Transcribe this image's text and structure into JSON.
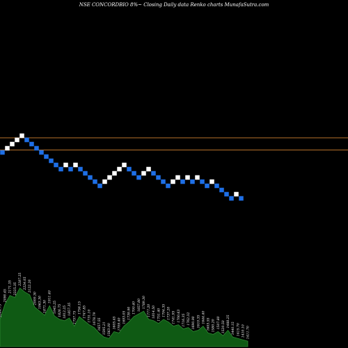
{
  "header": {
    "title": "NSE CONCORDBIO 8%~  Closing Daily data  Renko  charts MunafaSutra.com"
  },
  "colors": {
    "background": "#000000",
    "up_brick": "#ffffff",
    "down_brick": "#1e6fe6",
    "level_line": "#b8722a",
    "volume_fill": "#0f5a14",
    "volume_edge": "#2e8a32"
  },
  "chart_data": {
    "type": "renko",
    "brick_direction": [
      "down",
      "up",
      "up",
      "up",
      "up",
      "down",
      "down",
      "down",
      "down",
      "down",
      "down",
      "down",
      "down",
      "up",
      "down",
      "up",
      "down",
      "down",
      "down",
      "down",
      "down",
      "up",
      "up",
      "up",
      "up",
      "up",
      "down",
      "down",
      "down",
      "up",
      "up",
      "down",
      "down",
      "down",
      "down",
      "up",
      "up",
      "down",
      "up",
      "down",
      "up",
      "down",
      "down",
      "up",
      "down",
      "down",
      "down",
      "down",
      "up",
      "down"
    ],
    "level_lines": [
      2093.0,
      1922.0
    ],
    "volume": {
      "type": "area",
      "values": [
        40,
        62,
        75,
        72,
        86,
        80,
        76,
        58,
        52,
        46,
        60,
        45,
        40,
        38,
        42,
        30,
        44,
        38,
        32,
        28,
        20,
        14,
        12,
        22,
        20,
        30,
        36,
        44,
        48,
        52,
        40,
        38,
        34,
        40,
        36,
        30,
        32,
        26,
        28,
        22,
        24,
        30,
        20,
        18,
        22,
        16,
        24,
        14,
        12,
        10,
        8
      ],
      "labels": [
        "2044.75",
        "2090.45",
        "2171.35",
        "2225.35",
        "2287.25",
        "2224.05",
        "2122.20",
        "2009.30",
        "1963.30",
        "1871.30",
        "1911.40",
        "1945.25",
        "1826.75",
        "1812.25",
        "1857.35",
        "1757.75",
        "1756.15",
        "1747.85",
        "1731.10",
        "1678.79",
        "1657.55",
        "1595.21",
        "1563.00",
        "1605.45",
        "1709.40",
        "1693.05",
        "1739.90",
        "1700.40",
        "1857.80",
        "1789.30",
        "1777.20",
        "1814.50",
        "1751.40",
        "1794.35",
        "1737.20",
        "1741.95",
        "1700.63",
        "1716.35",
        "1762.32",
        "1690.90",
        "1610.35",
        "1644.40",
        "1603.55",
        "1580.20",
        "1507.80",
        "1520.50",
        "1488.25",
        "1440.15",
        "1415.70",
        "1410.10",
        "1411.70"
      ]
    }
  }
}
